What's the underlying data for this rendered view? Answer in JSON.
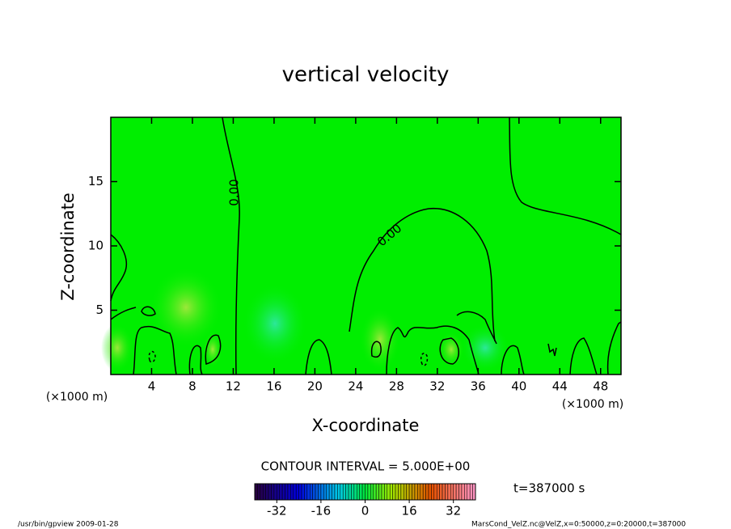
{
  "chart_data": {
    "type": "contour",
    "title": "vertical velocity",
    "xlabel": "X-coordinate",
    "ylabel": "Z-coordinate",
    "x_unit": "(×1000 m)",
    "xlim": [
      0,
      50
    ],
    "ylim": [
      0,
      20
    ],
    "xticks": [
      4,
      8,
      12,
      16,
      20,
      24,
      28,
      32,
      36,
      40,
      44,
      48
    ],
    "yticks": [
      5,
      10,
      15
    ],
    "contour_labels": [
      "0.00",
      "0.00"
    ],
    "contour_interval": "CONTOUR INTERVAL = 5.000E+00",
    "colorbar": {
      "lim": [
        -40,
        40
      ],
      "ticks": [
        -32,
        -16,
        0,
        16,
        32
      ]
    },
    "time": "t=387000 s",
    "footer_left": "/usr/bin/gpview   2009-01-28",
    "footer_right": "MarsCond_VelZ.nc@VelZ,x=0:50000,z=0:20000,t=387000"
  }
}
